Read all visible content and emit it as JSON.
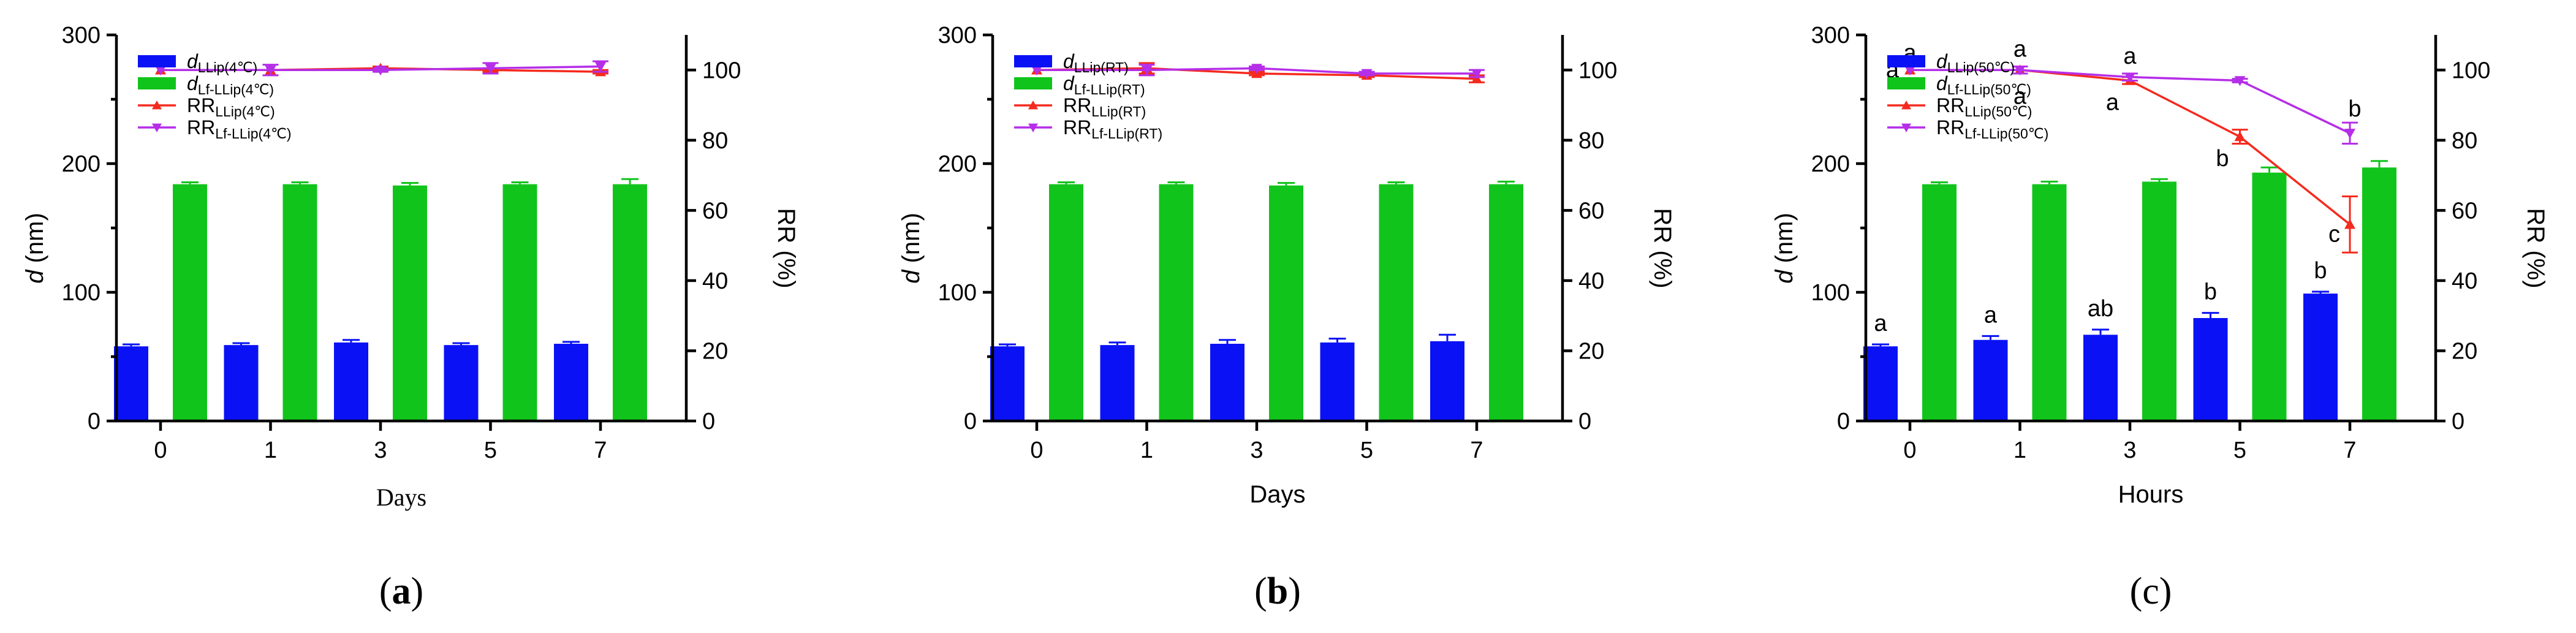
{
  "colors": {
    "bar_llip": "#0a12f5",
    "bar_lf": "#11c41b",
    "rr_llip": "#f52a1e",
    "rr_lf": "#b52ee8",
    "axis": "#000000"
  },
  "chart_data": [
    {
      "type": "bar+line",
      "panel_label": "(a)",
      "panel_letter": "a",
      "xlabel": "Days",
      "xlabel_style": "serif",
      "ylabel_left_italic": "d",
      "ylabel_left_rest": " (nm)",
      "ylabel_right": "RR (%)",
      "categories": [
        "0",
        "1",
        "3",
        "5",
        "7"
      ],
      "ylim_left": [
        0,
        300
      ],
      "yticks_left": [
        "0",
        "100",
        "200",
        "300"
      ],
      "ylim_right": [
        0,
        110
      ],
      "yticks_right": [
        "0",
        "20",
        "40",
        "60",
        "80",
        "100"
      ],
      "bars": [
        {
          "name_main": "d",
          "name_sub": "LLip(4℃)",
          "color_key": "bar_llip",
          "values": [
            58,
            59,
            61,
            59,
            60
          ],
          "errors": [
            1.5,
            1.5,
            2,
            1.5,
            1.5
          ]
        },
        {
          "name_main": "d",
          "name_sub": "Lf-LLip(4℃)",
          "color_key": "bar_lf",
          "values": [
            184,
            184,
            183,
            184,
            184
          ],
          "errors": [
            1.5,
            1.5,
            2,
            1.5,
            4
          ]
        }
      ],
      "lines": [
        {
          "name_main": "RR",
          "name_sub": "LLip(4℃)",
          "color_key": "rr_llip",
          "marker": "triangle-up",
          "values": [
            100,
            100,
            100.5,
            100,
            99.5
          ],
          "errors": [
            0,
            0,
            0.5,
            0.5,
            0.5
          ]
        },
        {
          "name_main": "RR",
          "name_sub": "Lf-LLip(4℃)",
          "color_key": "rr_lf",
          "marker": "triangle-down",
          "values": [
            100,
            100,
            100,
            100.5,
            101
          ],
          "errors": [
            0,
            1.5,
            0.5,
            1.5,
            1.5
          ]
        }
      ],
      "annotations": []
    },
    {
      "type": "bar+line",
      "panel_label": "(b)",
      "panel_letter": "b",
      "xlabel": "Days",
      "xlabel_style": "sans",
      "ylabel_left_italic": "d",
      "ylabel_left_rest": " (nm)",
      "ylabel_right": "RR (%)",
      "categories": [
        "0",
        "1",
        "3",
        "5",
        "7"
      ],
      "ylim_left": [
        0,
        300
      ],
      "yticks_left": [
        "0",
        "100",
        "200",
        "300"
      ],
      "ylim_right": [
        0,
        110
      ],
      "yticks_right": [
        "0",
        "20",
        "40",
        "60",
        "80",
        "100"
      ],
      "bars": [
        {
          "name_main": "d",
          "name_sub": "LLip(RT)",
          "color_key": "bar_llip",
          "values": [
            58,
            59,
            60,
            61,
            62
          ],
          "errors": [
            1.5,
            2,
            3,
            3,
            5
          ]
        },
        {
          "name_main": "d",
          "name_sub": "Lf-LLip(RT)",
          "color_key": "bar_lf",
          "values": [
            184,
            184,
            183,
            184,
            184
          ],
          "errors": [
            1.5,
            1.5,
            2,
            1.5,
            2
          ]
        }
      ],
      "lines": [
        {
          "name_main": "RR",
          "name_sub": "LLip(RT)",
          "color_key": "rr_llip",
          "marker": "triangle-up",
          "values": [
            100,
            100.5,
            99,
            98.5,
            97.5
          ],
          "errors": [
            0,
            1.5,
            0.5,
            0.5,
            1
          ]
        },
        {
          "name_main": "RR",
          "name_sub": "Lf-LLip(RT)",
          "color_key": "rr_lf",
          "marker": "triangle-down",
          "values": [
            100,
            100,
            100.5,
            99,
            99
          ],
          "errors": [
            0,
            1.5,
            0.5,
            0.5,
            1
          ]
        }
      ],
      "annotations": []
    },
    {
      "type": "bar+line",
      "panel_label": "(c)",
      "panel_letter": "c",
      "xlabel": "Hours",
      "xlabel_style": "sans",
      "ylabel_left_italic": "d",
      "ylabel_left_rest": " (nm)",
      "ylabel_right": "RR (%)",
      "categories": [
        "0",
        "1",
        "3",
        "5",
        "7"
      ],
      "ylim_left": [
        0,
        300
      ],
      "yticks_left": [
        "0",
        "100",
        "200",
        "300"
      ],
      "ylim_right": [
        0,
        110
      ],
      "yticks_right": [
        "0",
        "20",
        "40",
        "60",
        "80",
        "100"
      ],
      "bars": [
        {
          "name_main": "d",
          "name_sub": "LLip(50℃)",
          "color_key": "bar_llip",
          "values": [
            58,
            63,
            67,
            80,
            99
          ],
          "errors": [
            1.5,
            3,
            4,
            4,
            1.5
          ],
          "labels": [
            "a",
            "a",
            "ab",
            "b",
            "b"
          ]
        },
        {
          "name_main": "d",
          "name_sub": "Lf-LLip(50℃)",
          "color_key": "bar_lf",
          "values": [
            184,
            184,
            186,
            193,
            197
          ],
          "errors": [
            1.5,
            2,
            2,
            4,
            5
          ]
        }
      ],
      "lines": [
        {
          "name_main": "RR",
          "name_sub": "LLip(50℃)",
          "color_key": "rr_llip",
          "marker": "triangle-up",
          "values": [
            100,
            100,
            97,
            81,
            56
          ],
          "errors": [
            0,
            1,
            1,
            2,
            8
          ],
          "labels": [
            "a",
            "a",
            "a",
            "b",
            "c"
          ]
        },
        {
          "name_main": "RR",
          "name_sub": "Lf-LLip(50℃)",
          "color_key": "rr_lf",
          "marker": "triangle-down",
          "values": [
            100,
            100,
            98,
            97,
            82
          ],
          "errors": [
            0,
            1,
            1,
            0.5,
            3
          ],
          "labels": [
            "a",
            "a",
            "a",
            "",
            "b"
          ]
        }
      ]
    }
  ]
}
